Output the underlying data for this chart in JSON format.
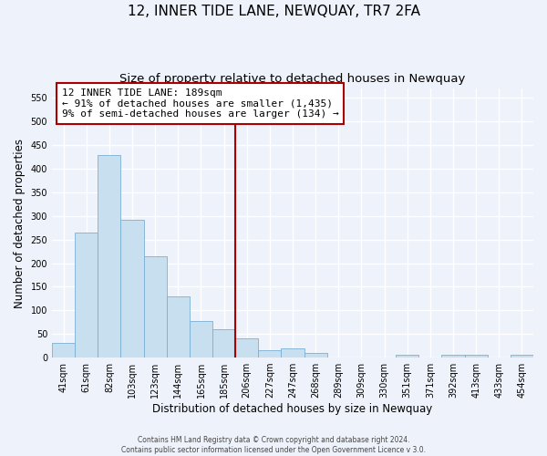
{
  "title": "12, INNER TIDE LANE, NEWQUAY, TR7 2FA",
  "subtitle": "Size of property relative to detached houses in Newquay",
  "xlabel": "Distribution of detached houses by size in Newquay",
  "ylabel": "Number of detached properties",
  "footer_line1": "Contains HM Land Registry data © Crown copyright and database right 2024.",
  "footer_line2": "Contains public sector information licensed under the Open Government Licence v 3.0.",
  "bar_labels": [
    "41sqm",
    "61sqm",
    "82sqm",
    "103sqm",
    "123sqm",
    "144sqm",
    "165sqm",
    "185sqm",
    "206sqm",
    "227sqm",
    "247sqm",
    "268sqm",
    "289sqm",
    "309sqm",
    "330sqm",
    "351sqm",
    "371sqm",
    "392sqm",
    "413sqm",
    "433sqm",
    "454sqm"
  ],
  "bar_values": [
    32,
    265,
    428,
    292,
    215,
    130,
    78,
    60,
    41,
    15,
    20,
    9,
    0,
    0,
    0,
    5,
    0,
    5,
    5,
    0,
    5
  ],
  "bar_color": "#c8dff0",
  "bar_edge_color": "#7aafd4",
  "reference_line_index": 7,
  "reference_line_color": "#aa0000",
  "annotation_title": "12 INNER TIDE LANE: 189sqm",
  "annotation_line1": "← 91% of detached houses are smaller (1,435)",
  "annotation_line2": "9% of semi-detached houses are larger (134) →",
  "ylim": [
    0,
    570
  ],
  "yticks": [
    0,
    50,
    100,
    150,
    200,
    250,
    300,
    350,
    400,
    450,
    500,
    550
  ],
  "background_color": "#eef2fa",
  "plot_background_color": "#eef2fa",
  "grid_color": "#ffffff",
  "title_fontsize": 11,
  "subtitle_fontsize": 9.5,
  "axis_label_fontsize": 8.5,
  "tick_fontsize": 7,
  "annotation_fontsize": 8
}
